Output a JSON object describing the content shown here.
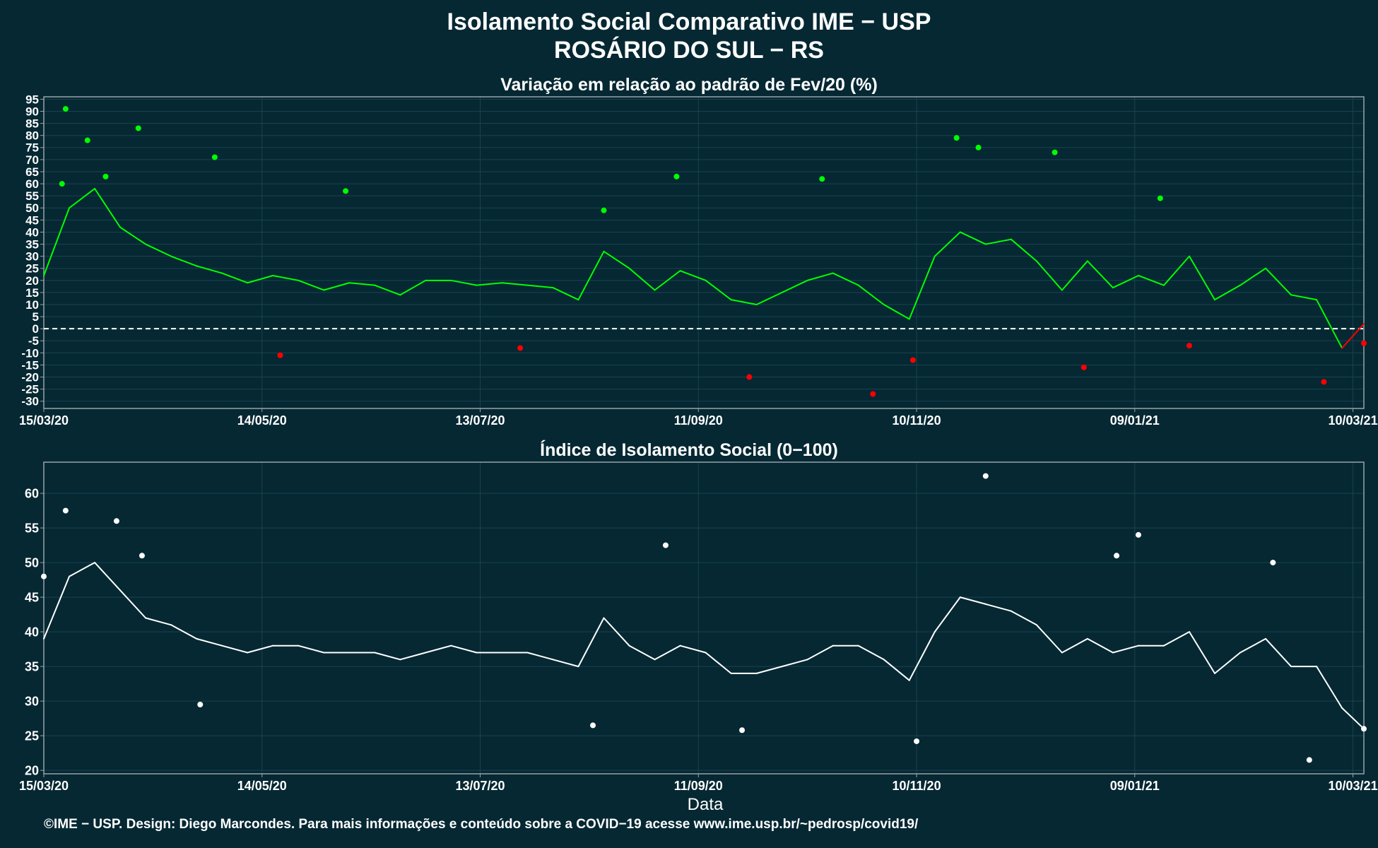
{
  "header": {
    "title_line1": "Isolamento Social Comparativo IME − USP",
    "title_line2": "ROSÁRIO DO SUL − RS"
  },
  "footer": {
    "credit": "©IME − USP. Design: Diego Marcondes. Para mais informações e conteúdo sobre a COVID−19 acesse www.ime.usp.br/~pedrosp/covid19/"
  },
  "colors": {
    "background": "#052833",
    "above_baseline": "#00ff00",
    "below_baseline": "#ff0000",
    "index_series": "#ffffff",
    "axis": "#9aa3a8",
    "grid": "#1a4350"
  },
  "chart_data": [
    {
      "type": "scatter",
      "title": "Variação em relação ao padrão de Fev/20 (%)",
      "xlabel": "",
      "ylabel": "",
      "x_ticks": [
        "15/03/20",
        "14/05/20",
        "13/07/20",
        "11/09/20",
        "10/11/20",
        "09/01/21",
        "10/03/21"
      ],
      "x_range": [
        "15/03/20",
        "13/03/21"
      ],
      "ylim": [
        -33,
        96
      ],
      "y_ticks": [
        95,
        90,
        85,
        80,
        75,
        70,
        65,
        60,
        55,
        50,
        45,
        40,
        35,
        30,
        25,
        20,
        15,
        10,
        5,
        0,
        -5,
        -10,
        -15,
        -20,
        -25,
        -30
      ],
      "reference_line": {
        "y": 0,
        "style": "dashed"
      },
      "grid": true,
      "legend": "none",
      "encoding": "points and 7-day moving average; green when value >= 0, red when value < 0",
      "weekly_moving_average": {
        "dates": [
          "15/03/20",
          "22/03/20",
          "29/03/20",
          "05/04/20",
          "12/04/20",
          "19/04/20",
          "26/04/20",
          "03/05/20",
          "10/05/20",
          "17/05/20",
          "24/05/20",
          "31/05/20",
          "07/06/20",
          "14/06/20",
          "21/06/20",
          "28/06/20",
          "05/07/20",
          "12/07/20",
          "19/07/20",
          "26/07/20",
          "02/08/20",
          "09/08/20",
          "16/08/20",
          "23/08/20",
          "30/08/20",
          "06/09/20",
          "13/09/20",
          "20/09/20",
          "27/09/20",
          "04/10/20",
          "11/10/20",
          "18/10/20",
          "25/10/20",
          "01/11/20",
          "08/11/20",
          "15/11/20",
          "22/11/20",
          "29/11/20",
          "06/12/20",
          "13/12/20",
          "20/12/20",
          "27/12/20",
          "03/01/21",
          "10/01/21",
          "17/01/21",
          "24/01/21",
          "31/01/21",
          "07/02/21",
          "14/02/21",
          "21/02/21",
          "28/02/21",
          "07/03/21",
          "13/03/21"
        ],
        "values": [
          22,
          50,
          58,
          42,
          35,
          30,
          26,
          23,
          19,
          22,
          20,
          16,
          19,
          18,
          14,
          20,
          20,
          18,
          19,
          18,
          17,
          12,
          32,
          25,
          16,
          24,
          20,
          12,
          10,
          15,
          20,
          23,
          18,
          10,
          4,
          30,
          40,
          35,
          37,
          28,
          16,
          28,
          17,
          22,
          18,
          30,
          12,
          18,
          25,
          14,
          12,
          -8,
          2
        ]
      },
      "points_sample": {
        "dates": [
          "20/03/20",
          "21/03/20",
          "27/03/20",
          "01/04/20",
          "10/04/20",
          "01/05/20",
          "19/05/20",
          "06/06/20",
          "24/07/20",
          "16/08/20",
          "05/09/20",
          "25/09/20",
          "15/10/20",
          "29/10/20",
          "09/11/20",
          "21/11/20",
          "27/11/20",
          "18/12/20",
          "26/12/20",
          "16/01/21",
          "24/01/21",
          "02/03/21",
          "13/03/21"
        ],
        "values": [
          60,
          91,
          78,
          63,
          83,
          71,
          -11,
          57,
          -8,
          49,
          63,
          -20,
          62,
          -27,
          -13,
          79,
          75,
          73,
          -16,
          54,
          -7,
          -22,
          -6
        ]
      }
    },
    {
      "type": "scatter",
      "title": "Índice de Isolamento Social (0−100)",
      "xlabel": "Data",
      "ylabel": "",
      "x_ticks": [
        "15/03/20",
        "14/05/20",
        "13/07/20",
        "11/09/20",
        "10/11/20",
        "09/01/21",
        "10/03/21"
      ],
      "x_range": [
        "15/03/20",
        "13/03/21"
      ],
      "ylim": [
        19.5,
        64.5
      ],
      "y_ticks": [
        60,
        55,
        50,
        45,
        40,
        35,
        30,
        25,
        20
      ],
      "grid": true,
      "legend": "none",
      "encoding": "points and 7-day moving average (white)",
      "weekly_moving_average": {
        "dates": [
          "15/03/20",
          "22/03/20",
          "29/03/20",
          "05/04/20",
          "12/04/20",
          "19/04/20",
          "26/04/20",
          "03/05/20",
          "10/05/20",
          "17/05/20",
          "24/05/20",
          "31/05/20",
          "07/06/20",
          "14/06/20",
          "21/06/20",
          "28/06/20",
          "05/07/20",
          "12/07/20",
          "19/07/20",
          "26/07/20",
          "02/08/20",
          "09/08/20",
          "16/08/20",
          "23/08/20",
          "30/08/20",
          "06/09/20",
          "13/09/20",
          "20/09/20",
          "27/09/20",
          "04/10/20",
          "11/10/20",
          "18/10/20",
          "25/10/20",
          "01/11/20",
          "08/11/20",
          "15/11/20",
          "22/11/20",
          "29/11/20",
          "06/12/20",
          "13/12/20",
          "20/12/20",
          "27/12/20",
          "03/01/21",
          "10/01/21",
          "17/01/21",
          "24/01/21",
          "31/01/21",
          "07/02/21",
          "14/02/21",
          "21/02/21",
          "28/02/21",
          "07/03/21",
          "13/03/21"
        ],
        "values": [
          39,
          48,
          50,
          46,
          42,
          41,
          39,
          38,
          37,
          38,
          38,
          37,
          37,
          37,
          36,
          37,
          38,
          37,
          37,
          37,
          36,
          35,
          42,
          38,
          36,
          38,
          37,
          34,
          34,
          35,
          36,
          38,
          38,
          36,
          33,
          40,
          45,
          44,
          43,
          41,
          37,
          39,
          37,
          38,
          38,
          40,
          34,
          37,
          39,
          35,
          35,
          29,
          26
        ]
      },
      "points_sample": {
        "dates": [
          "15/03/20",
          "21/03/20",
          "04/04/20",
          "11/04/20",
          "27/04/20",
          "13/08/20",
          "02/09/20",
          "23/09/20",
          "10/11/20",
          "29/11/20",
          "04/01/21",
          "10/01/21",
          "16/02/21",
          "26/02/21",
          "13/03/21"
        ],
        "values": [
          48,
          57.5,
          56,
          51,
          29.5,
          26.5,
          52.5,
          25.8,
          24.2,
          62.5,
          51,
          54,
          50,
          21.5,
          26
        ]
      }
    }
  ]
}
